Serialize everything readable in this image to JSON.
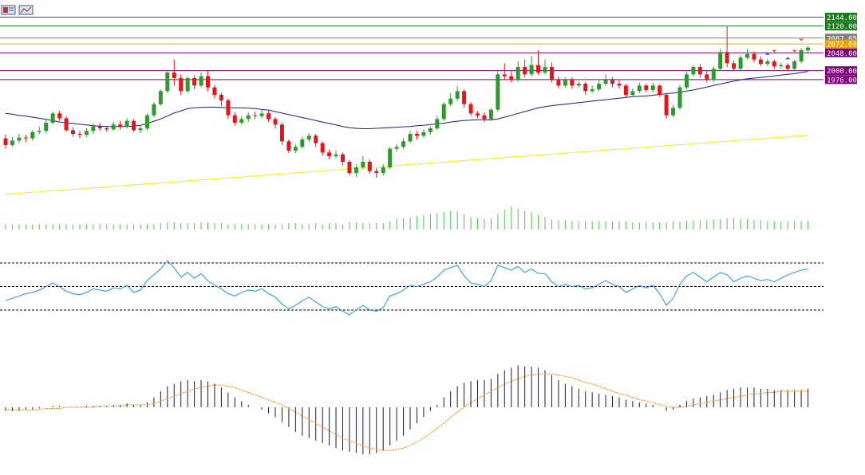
{
  "toolbar": {
    "icons": [
      "chart-window-icon",
      "chart-window-icon-2"
    ]
  },
  "colors": {
    "background": "#ffffff",
    "bull": "#2e9a2e",
    "bear": "#e8141b",
    "ma_fast": "#1a1a8c",
    "ma_slow": "#ffea00",
    "rsi": "#1e90ff",
    "macd_hist": "#1a1a40",
    "macd_signal": "#ff8c00",
    "volume": "#4cc44c",
    "level_green": "#1a7a1a",
    "level_gray": "#808080",
    "level_orange": "#f0a000",
    "level_purple": "#800080"
  },
  "levels": [
    {
      "value": 2144.0,
      "label": "2144.00",
      "color": "#1a7a1a"
    },
    {
      "value": 2120.0,
      "label": "2120.00",
      "color": "#1a7a1a"
    },
    {
      "value": 2087.65,
      "label": "2087.65",
      "color": "#808080"
    },
    {
      "value": 2072.0,
      "label": "2072.00",
      "color": "#f0a000"
    },
    {
      "value": 2048.0,
      "label": "2048.00",
      "color": "#800080"
    },
    {
      "value": 2000.0,
      "label": "2000.00",
      "color": "#800080"
    },
    {
      "value": 1976.0,
      "label": "1976.00",
      "color": "#800080"
    }
  ],
  "chart_data": {
    "type": "candlestick",
    "price_range": [
      1620,
      2160
    ],
    "candles": [
      [
        1818,
        1800,
        1828,
        1790
      ],
      [
        1800,
        1812,
        1822,
        1795
      ],
      [
        1812,
        1820,
        1830,
        1805
      ],
      [
        1820,
        1818,
        1828,
        1808
      ],
      [
        1818,
        1835,
        1840,
        1812
      ],
      [
        1835,
        1838,
        1850,
        1828
      ],
      [
        1838,
        1860,
        1868,
        1832
      ],
      [
        1860,
        1885,
        1890,
        1855
      ],
      [
        1885,
        1872,
        1892,
        1865
      ],
      [
        1872,
        1840,
        1878,
        1835
      ],
      [
        1840,
        1830,
        1848,
        1822
      ],
      [
        1830,
        1828,
        1838,
        1818
      ],
      [
        1828,
        1838,
        1845,
        1822
      ],
      [
        1838,
        1850,
        1858,
        1830
      ],
      [
        1850,
        1845,
        1860,
        1838
      ],
      [
        1845,
        1842,
        1852,
        1835
      ],
      [
        1842,
        1855,
        1862,
        1838
      ],
      [
        1855,
        1850,
        1865,
        1842
      ],
      [
        1850,
        1865,
        1872,
        1845
      ],
      [
        1865,
        1840,
        1870,
        1835
      ],
      [
        1840,
        1845,
        1855,
        1832
      ],
      [
        1845,
        1880,
        1885,
        1840
      ],
      [
        1880,
        1910,
        1915,
        1875
      ],
      [
        1910,
        1945,
        1950,
        1905
      ],
      [
        1945,
        1995,
        2000,
        1940
      ],
      [
        1995,
        1980,
        2030,
        1960
      ],
      [
        1980,
        1945,
        1990,
        1935
      ],
      [
        1945,
        1980,
        1985,
        1940
      ],
      [
        1980,
        1960,
        1988,
        1950
      ],
      [
        1960,
        1985,
        1995,
        1955
      ],
      [
        1985,
        1955,
        2000,
        1945
      ],
      [
        1955,
        1935,
        1962,
        1925
      ],
      [
        1935,
        1920,
        1940,
        1905
      ],
      [
        1920,
        1880,
        1925,
        1870
      ],
      [
        1880,
        1860,
        1888,
        1852
      ],
      [
        1860,
        1870,
        1878,
        1855
      ],
      [
        1870,
        1880,
        1888,
        1862
      ],
      [
        1880,
        1878,
        1890,
        1870
      ],
      [
        1878,
        1885,
        1895,
        1872
      ],
      [
        1885,
        1870,
        1892,
        1862
      ],
      [
        1870,
        1855,
        1875,
        1845
      ],
      [
        1855,
        1810,
        1860,
        1800
      ],
      [
        1810,
        1785,
        1815,
        1778
      ],
      [
        1785,
        1795,
        1802,
        1778
      ],
      [
        1795,
        1815,
        1822,
        1790
      ],
      [
        1815,
        1825,
        1832,
        1808
      ],
      [
        1825,
        1805,
        1830,
        1795
      ],
      [
        1805,
        1780,
        1810,
        1772
      ],
      [
        1780,
        1770,
        1788,
        1762
      ],
      [
        1770,
        1775,
        1785,
        1765
      ],
      [
        1775,
        1755,
        1780,
        1745
      ],
      [
        1755,
        1725,
        1760,
        1718
      ],
      [
        1725,
        1740,
        1748,
        1715
      ],
      [
        1740,
        1755,
        1770,
        1735
      ],
      [
        1755,
        1730,
        1762,
        1722
      ],
      [
        1730,
        1725,
        1738,
        1712
      ],
      [
        1725,
        1740,
        1748,
        1718
      ],
      [
        1740,
        1790,
        1795,
        1735
      ],
      [
        1790,
        1795,
        1802,
        1782
      ],
      [
        1795,
        1810,
        1818,
        1790
      ],
      [
        1810,
        1830,
        1838,
        1805
      ],
      [
        1830,
        1825,
        1838,
        1815
      ],
      [
        1825,
        1835,
        1842,
        1820
      ],
      [
        1835,
        1845,
        1850,
        1828
      ],
      [
        1845,
        1870,
        1878,
        1840
      ],
      [
        1870,
        1910,
        1915,
        1865
      ],
      [
        1910,
        1925,
        1940,
        1905
      ],
      [
        1925,
        1945,
        1958,
        1918
      ],
      [
        1945,
        1910,
        1950,
        1900
      ],
      [
        1910,
        1885,
        1915,
        1878
      ],
      [
        1885,
        1880,
        1892,
        1872
      ],
      [
        1880,
        1870,
        1888,
        1862
      ],
      [
        1870,
        1895,
        1900,
        1865
      ],
      [
        1895,
        1990,
        2000,
        1890
      ],
      [
        1990,
        1985,
        2020,
        1975
      ],
      [
        1985,
        1975,
        1998,
        1968
      ],
      [
        1975,
        2010,
        2025,
        1970
      ],
      [
        2010,
        1990,
        2030,
        1982
      ],
      [
        1990,
        2015,
        2040,
        1985
      ],
      [
        2015,
        1995,
        2055,
        1988
      ],
      [
        1995,
        2010,
        2030,
        1990
      ],
      [
        2010,
        1975,
        2022,
        1968
      ],
      [
        1975,
        1960,
        1985,
        1952
      ],
      [
        1960,
        1975,
        1982,
        1955
      ],
      [
        1975,
        1960,
        1982,
        1952
      ],
      [
        1960,
        1965,
        1972,
        1955
      ],
      [
        1965,
        1945,
        1970,
        1935
      ],
      [
        1945,
        1950,
        1960,
        1940
      ],
      [
        1950,
        1965,
        1978,
        1945
      ],
      [
        1965,
        1975,
        1990,
        1958
      ],
      [
        1975,
        1965,
        1982,
        1955
      ],
      [
        1965,
        1960,
        1975,
        1952
      ],
      [
        1960,
        1935,
        1965,
        1928
      ],
      [
        1935,
        1945,
        1952,
        1930
      ],
      [
        1945,
        1960,
        1968,
        1940
      ],
      [
        1960,
        1948,
        1965,
        1942
      ],
      [
        1948,
        1960,
        1968,
        1942
      ],
      [
        1960,
        1935,
        1962,
        1930
      ],
      [
        1935,
        1880,
        1940,
        1870
      ],
      [
        1880,
        1900,
        1908,
        1875
      ],
      [
        1900,
        1955,
        1962,
        1895
      ],
      [
        1955,
        1990,
        1998,
        1950
      ],
      [
        1990,
        2010,
        2015,
        1985
      ],
      [
        2010,
        1990,
        2018,
        1982
      ],
      [
        1990,
        1975,
        2000,
        1968
      ],
      [
        1975,
        2005,
        2012,
        1970
      ],
      [
        2005,
        2050,
        2058,
        2000
      ],
      [
        2050,
        2020,
        2120,
        2010
      ],
      [
        2020,
        2005,
        2028,
        1998
      ],
      [
        2005,
        2035,
        2042,
        2000
      ],
      [
        2035,
        2045,
        2058,
        2030
      ],
      [
        2045,
        2030,
        2052,
        2022
      ],
      [
        2030,
        2018,
        2038,
        2012
      ],
      [
        2018,
        2025,
        2032,
        2012
      ],
      [
        2025,
        2012,
        2030,
        2005
      ],
      [
        2012,
        2015,
        2022,
        2006
      ],
      [
        2015,
        2005,
        2020,
        1998
      ],
      [
        2005,
        2025,
        2030,
        2000
      ],
      [
        2025,
        2055,
        2060,
        2020
      ],
      [
        2055,
        2062,
        2066,
        2050
      ]
    ],
    "ma_fast": [
      1885,
      1883,
      1880,
      1878,
      1875,
      1872,
      1869,
      1866,
      1862,
      1860,
      1858,
      1856,
      1854,
      1852,
      1851,
      1850,
      1850,
      1850,
      1850,
      1851,
      1853,
      1858,
      1864,
      1870,
      1878,
      1886,
      1892,
      1898,
      1900,
      1901,
      1902,
      1902,
      1901,
      1900,
      1900,
      1900,
      1899,
      1898,
      1896,
      1894,
      1890,
      1886,
      1882,
      1878,
      1874,
      1870,
      1866,
      1862,
      1858,
      1854,
      1850,
      1847,
      1845,
      1844,
      1844,
      1845,
      1846,
      1847,
      1848,
      1849,
      1850,
      1852,
      1853,
      1855,
      1857,
      1859,
      1862,
      1864,
      1866,
      1867,
      1868,
      1868,
      1868,
      1870,
      1875,
      1880,
      1885,
      1890,
      1895,
      1900,
      1903,
      1906,
      1908,
      1910,
      1912,
      1914,
      1916,
      1918,
      1920,
      1922,
      1924,
      1926,
      1928,
      1930,
      1931,
      1932,
      1934,
      1936,
      1938,
      1940,
      1942,
      1945,
      1948,
      1952,
      1956,
      1960,
      1964,
      1968,
      1972,
      1975,
      1978,
      1980,
      1982,
      1984,
      1986,
      1988,
      1990,
      1992,
      1995,
      1998
    ],
    "ma_slow": [
      1668,
      1669,
      1670,
      1672,
      1673,
      1674,
      1676,
      1677,
      1678,
      1680,
      1681,
      1682,
      1684,
      1685,
      1686,
      1688,
      1689,
      1690,
      1692,
      1693,
      1694,
      1696,
      1697,
      1698,
      1700,
      1701,
      1702,
      1704,
      1705,
      1706,
      1708,
      1709,
      1710,
      1712,
      1713,
      1714,
      1716,
      1717,
      1718,
      1720,
      1721,
      1722,
      1724,
      1725,
      1726,
      1728,
      1729,
      1730,
      1732,
      1733,
      1734,
      1736,
      1737,
      1738,
      1740,
      1741,
      1742,
      1744,
      1745,
      1746,
      1748,
      1749,
      1750,
      1752,
      1753,
      1754,
      1756,
      1757,
      1758,
      1760,
      1761,
      1762,
      1764,
      1765,
      1766,
      1768,
      1769,
      1770,
      1772,
      1773,
      1774,
      1776,
      1777,
      1778,
      1780,
      1781,
      1782,
      1784,
      1785,
      1786,
      1788,
      1789,
      1790,
      1792,
      1793,
      1794,
      1796,
      1797,
      1798,
      1800,
      1801,
      1802,
      1804,
      1805,
      1806,
      1808,
      1809,
      1810,
      1812,
      1813,
      1814,
      1816,
      1817,
      1818,
      1820,
      1821,
      1822,
      1824,
      1825,
      1826
    ],
    "volume": [
      5,
      5,
      5,
      5,
      5,
      5,
      5,
      5,
      5,
      5,
      5,
      5,
      5,
      5,
      5,
      5,
      5,
      5,
      5,
      5,
      5,
      5,
      5,
      6,
      7,
      7,
      6,
      6,
      6,
      7,
      7,
      6,
      6,
      5,
      5,
      5,
      5,
      5,
      5,
      5,
      5,
      5,
      6,
      6,
      5,
      5,
      6,
      5,
      6,
      6,
      5,
      7,
      7,
      6,
      6,
      6,
      6,
      8,
      10,
      11,
      12,
      13,
      14,
      15,
      16,
      17,
      18,
      18,
      15,
      12,
      11,
      10,
      11,
      15,
      19,
      22,
      20,
      18,
      17,
      14,
      12,
      10,
      9,
      9,
      8,
      8,
      8,
      8,
      8,
      8,
      8,
      8,
      8,
      7,
      7,
      7,
      7,
      7,
      7,
      8,
      8,
      8,
      9,
      9,
      9,
      10,
      10,
      11,
      11,
      10,
      10,
      9,
      9,
      8,
      8,
      8,
      8,
      8,
      8,
      8
    ],
    "rsi": [
      38,
      40,
      42,
      44,
      45,
      47,
      50,
      53,
      50,
      46,
      44,
      43,
      45,
      48,
      47,
      46,
      49,
      48,
      51,
      45,
      47,
      55,
      60,
      65,
      72,
      66,
      58,
      62,
      57,
      61,
      55,
      51,
      48,
      44,
      42,
      45,
      47,
      46,
      48,
      44,
      41,
      35,
      31,
      34,
      38,
      41,
      37,
      33,
      31,
      33,
      29,
      26,
      30,
      34,
      30,
      29,
      32,
      42,
      44,
      47,
      51,
      50,
      52,
      54,
      58,
      64,
      66,
      68,
      59,
      53,
      52,
      50,
      55,
      68,
      66,
      64,
      67,
      62,
      65,
      61,
      61,
      54,
      50,
      52,
      50,
      51,
      48,
      49,
      52,
      55,
      52,
      50,
      45,
      48,
      51,
      49,
      51,
      44,
      34,
      40,
      52,
      59,
      62,
      58,
      54,
      58,
      62,
      60,
      54,
      57,
      59,
      57,
      55,
      56,
      54,
      57,
      60,
      62,
      64,
      65
    ],
    "macd_hist": [
      -3,
      -3,
      -3,
      -2,
      -2,
      -1,
      0,
      1,
      1,
      0,
      0,
      0,
      1,
      1,
      1,
      1,
      2,
      2,
      3,
      2,
      2,
      4,
      8,
      13,
      17,
      19,
      21,
      22,
      21,
      22,
      21,
      19,
      16,
      12,
      8,
      5,
      2,
      0,
      -2,
      -5,
      -8,
      -12,
      -16,
      -20,
      -23,
      -25,
      -27,
      -29,
      -31,
      -33,
      -35,
      -36,
      -37,
      -38,
      -38,
      -37,
      -35,
      -31,
      -27,
      -23,
      -18,
      -13,
      -8,
      -3,
      2,
      8,
      13,
      17,
      20,
      21,
      22,
      22,
      23,
      27,
      30,
      32,
      34,
      33,
      33,
      32,
      30,
      26,
      22,
      19,
      17,
      15,
      13,
      12,
      11,
      10,
      9,
      8,
      6,
      5,
      4,
      3,
      2,
      0,
      -3,
      -2,
      2,
      5,
      7,
      8,
      9,
      10,
      12,
      14,
      15,
      16,
      16,
      16,
      15,
      15,
      14,
      14,
      14,
      14,
      14,
      15
    ],
    "macd_signal": [
      -2,
      -2,
      -2,
      -2,
      -2,
      -2,
      -1,
      -1,
      -1,
      0,
      0,
      0,
      0,
      0,
      1,
      1,
      1,
      1,
      2,
      2,
      2,
      2,
      3,
      5,
      7,
      9,
      11,
      13,
      15,
      16,
      17,
      18,
      18,
      17,
      16,
      14,
      12,
      10,
      8,
      6,
      4,
      2,
      -1,
      -4,
      -7,
      -10,
      -13,
      -16,
      -19,
      -22,
      -25,
      -27,
      -29,
      -31,
      -33,
      -34,
      -35,
      -35,
      -34,
      -33,
      -31,
      -28,
      -25,
      -21,
      -17,
      -13,
      -8,
      -4,
      0,
      4,
      7,
      10,
      13,
      16,
      19,
      21,
      23,
      25,
      26,
      27,
      27,
      27,
      26,
      25,
      24,
      22,
      20,
      19,
      17,
      15,
      13,
      11,
      10,
      8,
      6,
      5,
      4,
      2,
      1,
      0,
      0,
      1,
      2,
      3,
      4,
      5,
      6,
      7,
      8,
      9,
      10,
      11,
      11,
      12,
      12,
      13,
      13,
      13,
      13,
      13
    ],
    "rsi_levels": [
      30,
      50,
      70
    ],
    "markers": [
      {
        "index": 113,
        "type": "arrow-up"
      },
      {
        "index": 114,
        "type": "arrow-down"
      },
      {
        "index": 116,
        "type": "arrow-up"
      },
      {
        "index": 117,
        "type": "arrow-down"
      },
      {
        "index": 118,
        "type": "arrow-down"
      }
    ]
  }
}
